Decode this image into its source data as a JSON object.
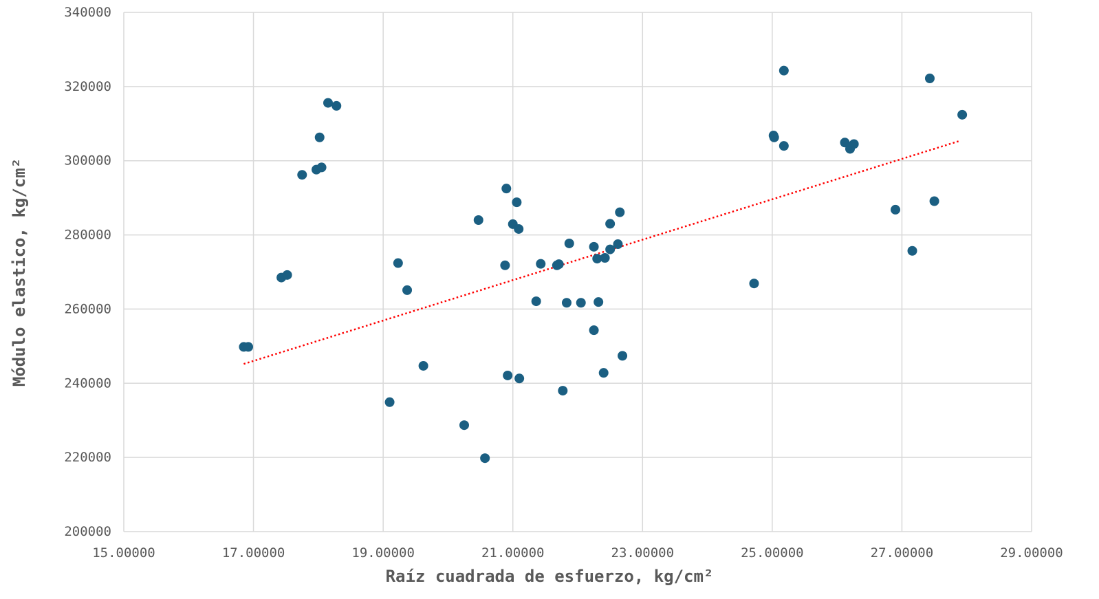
{
  "chart_data": {
    "type": "scatter",
    "xlabel": "Raíz cuadrada de esfuerzo, kg/cm²",
    "ylabel": "Módulo elastico, kg/cm²",
    "xlim": [
      15,
      29
    ],
    "ylim": [
      200000,
      340000
    ],
    "x_ticks": [
      "15.00000",
      "17.00000",
      "19.00000",
      "21.00000",
      "23.00000",
      "25.00000",
      "27.00000",
      "29.00000"
    ],
    "y_ticks": [
      "200000",
      "220000",
      "240000",
      "260000",
      "280000",
      "300000",
      "320000",
      "340000"
    ],
    "grid": true,
    "point_color": "#1b5f82",
    "trendline": {
      "type": "linear",
      "color": "#ff0000",
      "style": "dotted",
      "x_start": 16.85,
      "y_start": 245200,
      "x_end": 27.9,
      "y_end": 305400
    },
    "points": [
      {
        "x": 16.85,
        "y": 249800
      },
      {
        "x": 16.92,
        "y": 249800
      },
      {
        "x": 17.43,
        "y": 268500
      },
      {
        "x": 17.52,
        "y": 269200
      },
      {
        "x": 17.75,
        "y": 296200
      },
      {
        "x": 17.97,
        "y": 297600
      },
      {
        "x": 18.02,
        "y": 306300
      },
      {
        "x": 18.05,
        "y": 298200
      },
      {
        "x": 18.15,
        "y": 315600
      },
      {
        "x": 18.28,
        "y": 314800
      },
      {
        "x": 19.1,
        "y": 234900
      },
      {
        "x": 19.23,
        "y": 272400
      },
      {
        "x": 19.37,
        "y": 265100
      },
      {
        "x": 19.62,
        "y": 244700
      },
      {
        "x": 20.25,
        "y": 228700
      },
      {
        "x": 20.47,
        "y": 284000
      },
      {
        "x": 20.57,
        "y": 219800
      },
      {
        "x": 20.88,
        "y": 271800
      },
      {
        "x": 20.9,
        "y": 292500
      },
      {
        "x": 20.92,
        "y": 242100
      },
      {
        "x": 21.0,
        "y": 282900
      },
      {
        "x": 21.06,
        "y": 288800
      },
      {
        "x": 21.09,
        "y": 281600
      },
      {
        "x": 21.1,
        "y": 241300
      },
      {
        "x": 21.36,
        "y": 262100
      },
      {
        "x": 21.43,
        "y": 272200
      },
      {
        "x": 21.68,
        "y": 271800
      },
      {
        "x": 21.71,
        "y": 272100
      },
      {
        "x": 21.77,
        "y": 238000
      },
      {
        "x": 21.83,
        "y": 261700
      },
      {
        "x": 21.87,
        "y": 277700
      },
      {
        "x": 22.05,
        "y": 261700
      },
      {
        "x": 22.25,
        "y": 276800
      },
      {
        "x": 22.25,
        "y": 254300
      },
      {
        "x": 22.3,
        "y": 273600
      },
      {
        "x": 22.32,
        "y": 261900
      },
      {
        "x": 22.4,
        "y": 242800
      },
      {
        "x": 22.42,
        "y": 273800
      },
      {
        "x": 22.5,
        "y": 276100
      },
      {
        "x": 22.5,
        "y": 283000
      },
      {
        "x": 22.62,
        "y": 277500
      },
      {
        "x": 22.65,
        "y": 286100
      },
      {
        "x": 22.69,
        "y": 247400
      },
      {
        "x": 24.72,
        "y": 266900
      },
      {
        "x": 25.02,
        "y": 306800
      },
      {
        "x": 25.03,
        "y": 306300
      },
      {
        "x": 25.18,
        "y": 304000
      },
      {
        "x": 25.18,
        "y": 324300
      },
      {
        "x": 26.12,
        "y": 304900
      },
      {
        "x": 26.2,
        "y": 303200
      },
      {
        "x": 26.26,
        "y": 304500
      },
      {
        "x": 26.9,
        "y": 286800
      },
      {
        "x": 27.16,
        "y": 275700
      },
      {
        "x": 27.43,
        "y": 322200
      },
      {
        "x": 27.5,
        "y": 289100
      },
      {
        "x": 27.93,
        "y": 312400
      }
    ]
  }
}
